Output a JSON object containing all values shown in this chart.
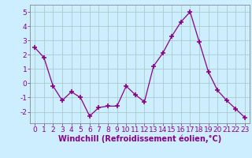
{
  "x": [
    0,
    1,
    2,
    3,
    4,
    5,
    6,
    7,
    8,
    9,
    10,
    11,
    12,
    13,
    14,
    15,
    16,
    17,
    18,
    19,
    20,
    21,
    22,
    23
  ],
  "y": [
    2.5,
    1.8,
    -0.2,
    -1.2,
    -0.6,
    -1.0,
    -2.3,
    -1.7,
    -1.6,
    -1.6,
    -0.2,
    -0.8,
    -1.3,
    1.2,
    2.1,
    3.3,
    4.3,
    5.0,
    2.9,
    0.8,
    -0.5,
    -1.2,
    -1.8,
    -2.4
  ],
  "line_color": "#880088",
  "marker": "+",
  "marker_size": 5,
  "marker_lw": 1.2,
  "bg_color": "#cceeff",
  "grid_color": "#aacccc",
  "xlabel": "Windchill (Refroidissement éolien,°C)",
  "ylim": [
    -2.8,
    5.5
  ],
  "xlim": [
    -0.5,
    23.5
  ],
  "yticks": [
    -2,
    -1,
    0,
    1,
    2,
    3,
    4,
    5
  ],
  "xticks": [
    0,
    1,
    2,
    3,
    4,
    5,
    6,
    7,
    8,
    9,
    10,
    11,
    12,
    13,
    14,
    15,
    16,
    17,
    18,
    19,
    20,
    21,
    22,
    23
  ],
  "tick_label_fontsize": 6.5,
  "xlabel_fontsize": 7,
  "axis_color": "#880088",
  "spine_color": "#888888",
  "lw": 0.9
}
